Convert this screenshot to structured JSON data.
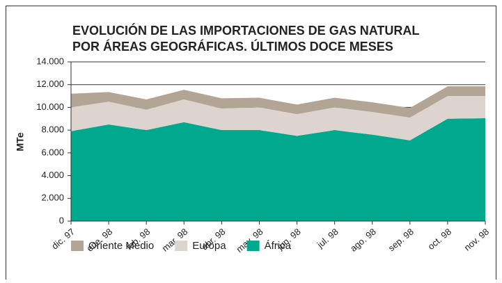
{
  "chart_data": {
    "type": "stacked_area",
    "title": [
      "EVOLUCIÓN DE LAS IMPORTACIONES DE GAS NATURAL",
      "POR ÁREAS GEOGRÁFICAS. ÚLTIMOS DOCE MESES"
    ],
    "y_label": "MTe",
    "categories": [
      "dic. 97",
      "ene. 98",
      "feb. 98",
      "mar. 98",
      "abr. 98",
      "may. 98",
      "jun. 98",
      "jul. 98",
      "ago. 98",
      "sep. 98",
      "oct. 98",
      "nov. 98"
    ],
    "series": [
      {
        "name": "África",
        "color": "#00a88e",
        "values": [
          7900,
          8500,
          8000,
          8700,
          8000,
          8000,
          7500,
          8000,
          7600,
          7100,
          9000,
          9050
        ]
      },
      {
        "name": "Europa",
        "color": "#ddd3cf",
        "values": [
          2100,
          2000,
          1800,
          2000,
          1900,
          2000,
          1900,
          2000,
          2000,
          2000,
          2000,
          1950
        ]
      },
      {
        "name": "Oriente Medio",
        "color": "#b2a595",
        "values": [
          1200,
          850,
          900,
          850,
          900,
          850,
          850,
          850,
          850,
          850,
          850,
          850
        ]
      }
    ],
    "legend_order": [
      2,
      1,
      0
    ],
    "ylim": [
      0,
      14000
    ],
    "yticks": [
      0,
      {
        "value": 2000,
        "label": "2.000"
      },
      {
        "value": 4000,
        "label": "4.000"
      },
      {
        "value": 6000,
        "label": "6.000"
      },
      {
        "value": 8000,
        "label": "8.000"
      },
      {
        "value": 10000,
        "label": "10.000"
      },
      {
        "value": 12000,
        "label": "12.000"
      },
      {
        "value": 14000,
        "label": "14.000"
      }
    ],
    "grid": true,
    "legend": "bottom"
  }
}
